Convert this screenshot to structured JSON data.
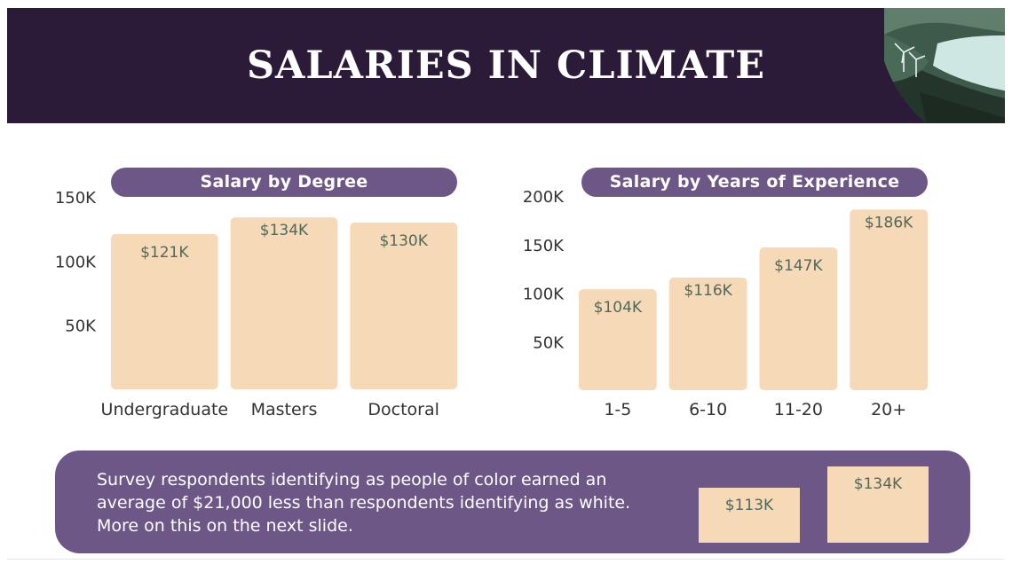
{
  "header": {
    "title": "SALARIES IN CLIMATE"
  },
  "chart_data": [
    {
      "type": "bar",
      "title": "Salary by Degree",
      "categories": [
        "Undergraduate",
        "Masters",
        "Doctoral"
      ],
      "values": [
        121,
        134,
        130
      ],
      "value_labels": [
        "$121K",
        "$134K",
        "$130K"
      ],
      "ylim": [
        0,
        150
      ],
      "yticks": [
        50,
        100,
        150
      ],
      "ytick_labels": [
        "50K",
        "100K",
        "150K"
      ],
      "bar_color": "#f6d9b7",
      "label_color": "#4f6a5c"
    },
    {
      "type": "bar",
      "title": "Salary by Years of Experience",
      "categories": [
        "1-5",
        "6-10",
        "11-20",
        "20+"
      ],
      "values": [
        104,
        116,
        147,
        186
      ],
      "value_labels": [
        "$104K",
        "$116K",
        "$147K",
        "$186K"
      ],
      "ylim": [
        0,
        200
      ],
      "yticks": [
        50,
        100,
        150,
        200
      ],
      "ytick_labels": [
        "50K",
        "100K",
        "150K",
        "200K"
      ],
      "bar_color": "#f6d9b7",
      "label_color": "#4f6a5c"
    }
  ],
  "note": {
    "text": "Survey respondents identifying as people of color earned an average of $21,000 less than respondents identifying as white. More on this on the next slide.",
    "poc_value": "$113K",
    "white_value": "$134K"
  },
  "colors": {
    "header_bg": "#2b1b38",
    "accent": "#6d5786",
    "bar": "#f6d9b7",
    "value_text": "#4f6a5c"
  }
}
